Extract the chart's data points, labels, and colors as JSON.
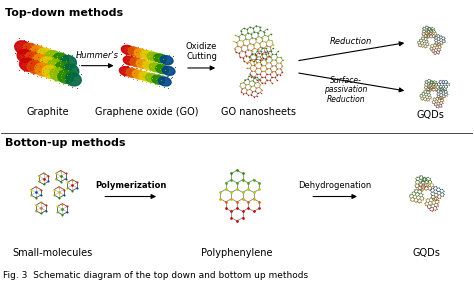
{
  "fig_width": 4.74,
  "fig_height": 3.03,
  "dpi": 100,
  "background_color": "#ffffff",
  "top_section_title": "Top-down methods",
  "bottom_section_title": "Botton-up methods",
  "caption": "Fig. 3  Schematic diagram of the top down and bottom up methods",
  "top_labels": [
    "Graphite",
    "Graphene oxide (GO)",
    "GO nanosheets",
    "GQDs"
  ],
  "bottom_labels": [
    "Small-molecules",
    "Polyphenylene",
    "GQDs"
  ],
  "title_fontsize": 8,
  "label_fontsize": 7,
  "arrow_fontsize": 6,
  "caption_fontsize": 6.5,
  "graphite_colors": [
    "#cc0000",
    "#dd3300",
    "#ee6600",
    "#eebb00",
    "#88bb00",
    "#44aa00",
    "#008800"
  ],
  "gqd_colors_top": [
    "#44aa00",
    "#228800",
    "#dd6600",
    "#006688",
    "#cc2200",
    "#ddaa00"
  ],
  "gqd_colors_ring": [
    "#cc2200",
    "#884400",
    "#cc6600",
    "#004488",
    "#448800",
    "#882200"
  ]
}
